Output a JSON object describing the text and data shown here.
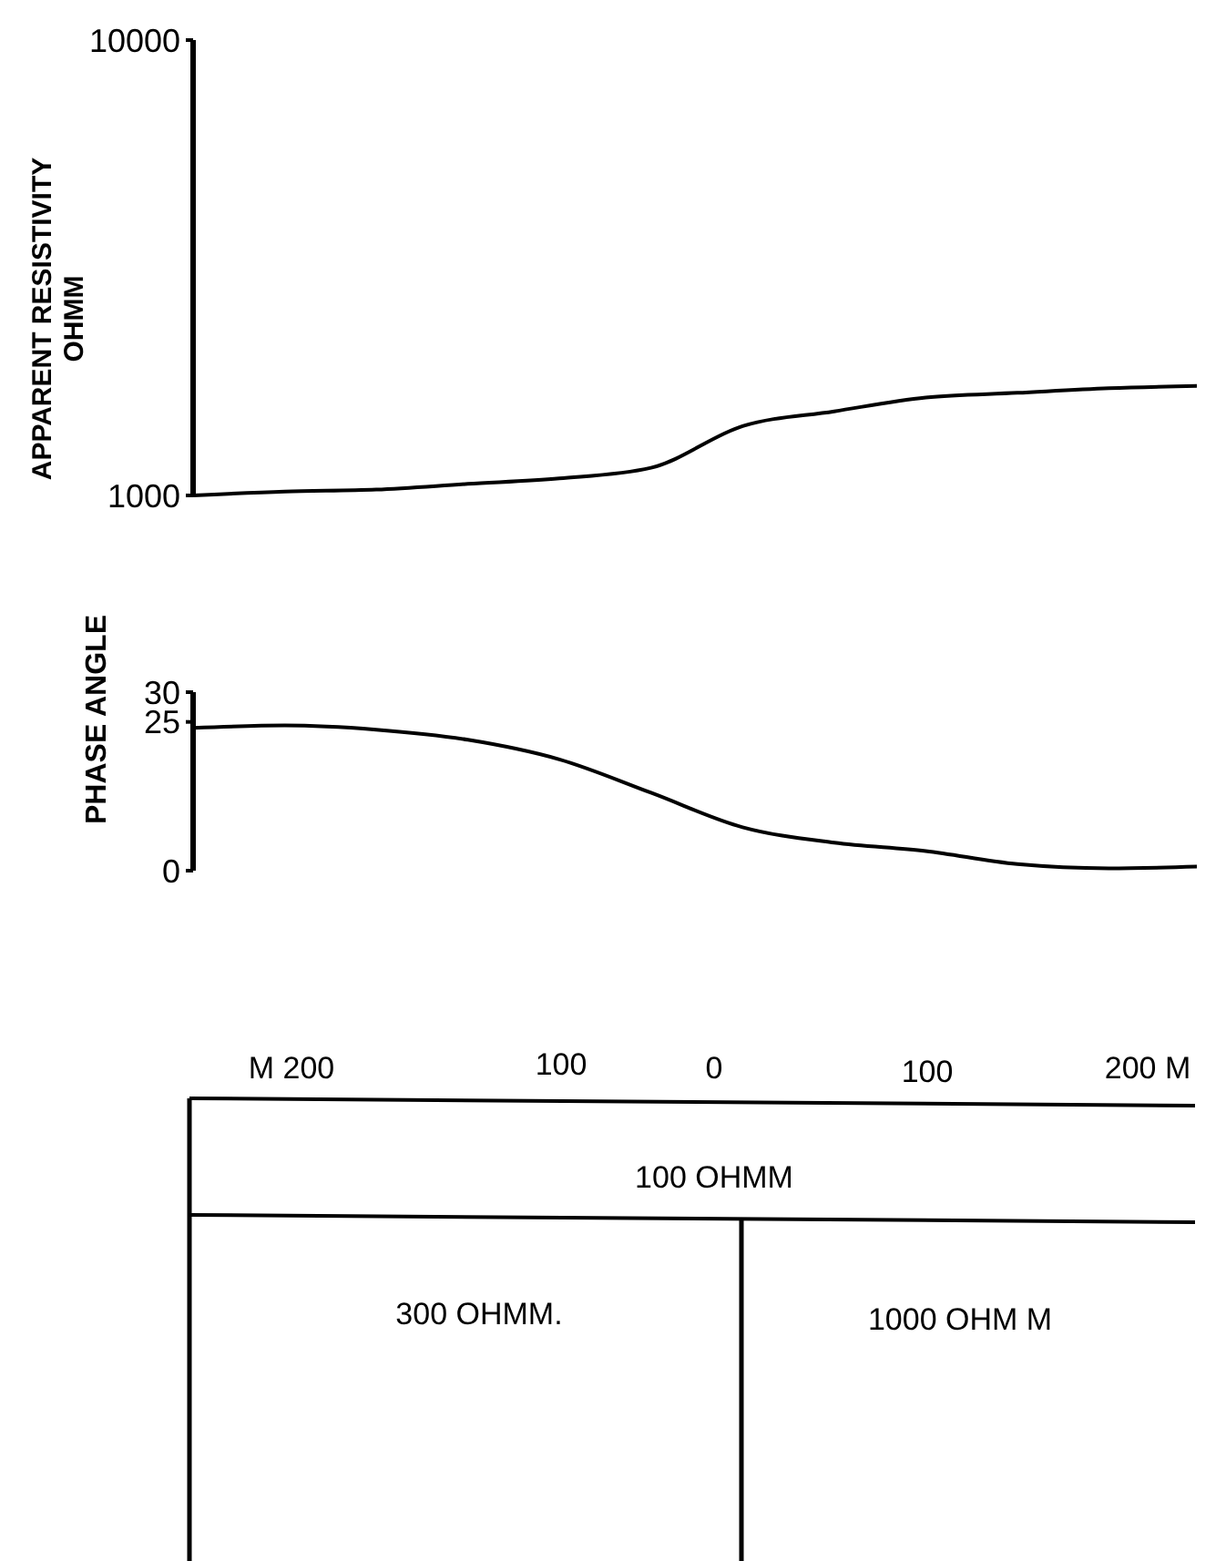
{
  "chart_data": [
    {
      "type": "line",
      "ylabel": "APPARENT RESISTIVITY OHMM",
      "log": true,
      "ylim": [
        1000,
        10000
      ],
      "yticks": [
        1000,
        10000
      ],
      "tick_labels": "y",
      "categories": [
        null,
        null,
        null,
        null,
        null,
        null,
        null,
        null,
        null,
        null,
        null,
        null
      ],
      "series": [
        {
          "color": "#000000",
          "values": [
            1000,
            1020,
            1030,
            1060,
            1090,
            1150,
            1420,
            1530,
            1640,
            1680,
            1720,
            1740
          ]
        }
      ]
    },
    {
      "type": "line",
      "ylabel": "PHASE ANGLE",
      "ylim": [
        0,
        30
      ],
      "yticks": [
        30,
        25,
        0
      ],
      "tick_labels": "y",
      "categories": [
        null,
        null,
        null,
        null,
        null,
        null,
        null,
        null,
        null,
        null,
        null,
        null
      ],
      "series": [
        {
          "color": "#000000",
          "values": [
            24.0,
            24.4,
            23.7,
            22.0,
            18.7,
            13.1,
            7.3,
            4.7,
            3.3,
            1.1,
            0.4,
            0.7
          ]
        }
      ]
    },
    {
      "type": "other",
      "annotations": [
        "M 200",
        "100",
        "0",
        "100",
        "200 M",
        "100 OHMM",
        "300 OHMM.",
        "1000 OHM M"
      ]
    }
  ]
}
